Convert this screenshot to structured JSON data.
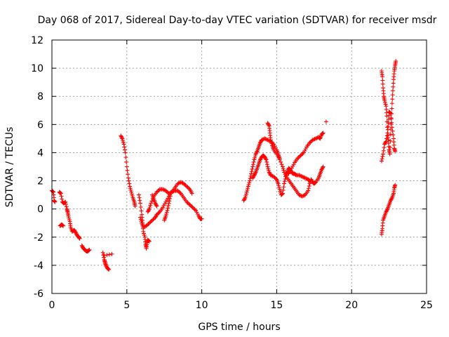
{
  "chart_data": {
    "type": "scatter",
    "title": "Day 068 of 2017, Sidereal Day-to-day VTEC variation (SDTVAR) for receiver msdr",
    "xlabel": "GPS time / hours",
    "ylabel": "SDTVAR / TECUs",
    "xlim": [
      0,
      25
    ],
    "ylim": [
      -6,
      12
    ],
    "xticks": [
      "0",
      "5",
      "10",
      "15",
      "20",
      "25"
    ],
    "yticks": [
      "-6",
      "-4",
      "-2",
      "0",
      "2",
      "4",
      "6",
      "8",
      "10",
      "12"
    ],
    "grid": true,
    "marker": "+",
    "color": "#ff0000",
    "series": [
      {
        "segments": [
          [
            [
              0.0,
              1.3
            ],
            [
              0.1,
              1.2
            ],
            [
              0.15,
              0.6
            ],
            [
              0.2,
              0.5
            ]
          ],
          [
            [
              0.5,
              1.2
            ],
            [
              0.6,
              1.1
            ],
            [
              0.7,
              0.5
            ],
            [
              0.8,
              0.4
            ],
            [
              0.9,
              0.5
            ],
            [
              1.0,
              0.0
            ],
            [
              1.05,
              -0.2
            ],
            [
              1.1,
              -0.5
            ],
            [
              1.2,
              -0.9
            ],
            [
              1.25,
              -1.3
            ],
            [
              1.35,
              -1.6
            ],
            [
              1.5,
              -1.5
            ],
            [
              1.6,
              -1.7
            ],
            [
              1.7,
              -1.9
            ],
            [
              1.8,
              -2.0
            ],
            [
              1.85,
              -2.1
            ]
          ],
          [
            [
              0.55,
              -1.2
            ],
            [
              0.65,
              -1.1
            ],
            [
              0.75,
              -1.2
            ]
          ],
          [
            [
              2.0,
              -2.6
            ],
            [
              2.1,
              -2.8
            ],
            [
              2.2,
              -2.9
            ],
            [
              2.3,
              -3.0
            ],
            [
              2.4,
              -3.0
            ],
            [
              2.5,
              -2.9
            ]
          ],
          [
            [
              3.4,
              -3.1
            ],
            [
              3.5,
              -3.6
            ],
            [
              3.55,
              -3.8
            ],
            [
              3.6,
              -4.0
            ],
            [
              3.7,
              -4.2
            ],
            [
              3.8,
              -4.3
            ]
          ],
          [
            [
              4.0,
              -3.2
            ],
            [
              3.5,
              -3.3
            ]
          ],
          [
            [
              4.6,
              5.2
            ],
            [
              4.7,
              5.0
            ],
            [
              4.8,
              4.6
            ],
            [
              4.9,
              4.0
            ],
            [
              5.0,
              3.0
            ],
            [
              5.1,
              2.2
            ],
            [
              5.2,
              1.6
            ],
            [
              5.3,
              1.2
            ],
            [
              5.4,
              0.8
            ],
            [
              5.5,
              0.5
            ],
            [
              5.55,
              0.2
            ]
          ],
          [
            [
              5.8,
              1.0
            ],
            [
              5.9,
              0.4
            ],
            [
              6.0,
              -0.4
            ],
            [
              6.05,
              -1.0
            ],
            [
              6.1,
              -1.6
            ],
            [
              6.2,
              -2.0
            ],
            [
              6.25,
              -2.5
            ],
            [
              6.3,
              -2.8
            ],
            [
              6.35,
              -2.4
            ],
            [
              6.4,
              -2.2
            ],
            [
              6.5,
              -2.3
            ]
          ],
          [
            [
              5.9,
              -0.6
            ],
            [
              6.0,
              -1.0
            ],
            [
              6.1,
              -1.3
            ],
            [
              6.3,
              -1.2
            ],
            [
              6.5,
              -1.0
            ],
            [
              6.7,
              -0.8
            ],
            [
              6.9,
              -0.6
            ],
            [
              7.0,
              -0.4
            ],
            [
              7.2,
              -0.2
            ],
            [
              7.4,
              0.1
            ],
            [
              7.6,
              0.5
            ],
            [
              7.8,
              0.9
            ],
            [
              8.0,
              1.2
            ],
            [
              8.2,
              1.3
            ],
            [
              8.4,
              1.3
            ],
            [
              8.6,
              1.1
            ],
            [
              8.8,
              0.8
            ],
            [
              9.0,
              0.5
            ],
            [
              9.2,
              0.3
            ],
            [
              9.4,
              0.1
            ],
            [
              9.6,
              -0.1
            ],
            [
              9.8,
              -0.5
            ],
            [
              9.9,
              -0.7
            ],
            [
              10.0,
              -0.7
            ]
          ],
          [
            [
              6.4,
              -0.2
            ],
            [
              6.5,
              0.0
            ],
            [
              6.6,
              0.4
            ],
            [
              6.8,
              0.9
            ],
            [
              7.0,
              1.2
            ],
            [
              7.2,
              1.4
            ],
            [
              7.4,
              1.4
            ],
            [
              7.6,
              1.3
            ],
            [
              7.8,
              1.1
            ],
            [
              8.0,
              1.2
            ],
            [
              8.2,
              1.5
            ],
            [
              8.4,
              1.8
            ],
            [
              8.6,
              1.9
            ],
            [
              8.8,
              1.8
            ],
            [
              9.0,
              1.6
            ],
            [
              9.2,
              1.4
            ],
            [
              9.35,
              1.1
            ]
          ],
          [
            [
              6.7,
              1.0
            ],
            [
              6.8,
              0.7
            ],
            [
              6.9,
              0.4
            ],
            [
              7.0,
              0.2
            ]
          ],
          [
            [
              7.5,
              -0.8
            ],
            [
              7.6,
              -0.5
            ],
            [
              7.7,
              -0.1
            ],
            [
              7.8,
              0.4
            ],
            [
              7.9,
              0.9
            ]
          ],
          [
            [
              12.8,
              0.6
            ],
            [
              12.9,
              0.8
            ],
            [
              13.0,
              1.2
            ],
            [
              13.1,
              1.6
            ],
            [
              13.2,
              2.0
            ],
            [
              13.3,
              2.5
            ],
            [
              13.4,
              3.0
            ],
            [
              13.5,
              3.5
            ],
            [
              13.6,
              3.9
            ],
            [
              13.7,
              4.1
            ],
            [
              13.8,
              4.4
            ],
            [
              13.9,
              4.7
            ],
            [
              14.0,
              4.9
            ],
            [
              14.2,
              5.0
            ],
            [
              14.4,
              4.9
            ],
            [
              14.6,
              4.8
            ],
            [
              14.8,
              4.6
            ],
            [
              15.0,
              4.2
            ],
            [
              15.1,
              3.9
            ],
            [
              15.2,
              3.6
            ]
          ],
          [
            [
              13.4,
              2.2
            ],
            [
              13.5,
              2.4
            ],
            [
              13.6,
              2.6
            ],
            [
              13.7,
              2.9
            ],
            [
              13.8,
              3.2
            ],
            [
              13.9,
              3.5
            ],
            [
              14.0,
              3.7
            ],
            [
              14.1,
              3.8
            ],
            [
              14.2,
              3.7
            ],
            [
              14.3,
              3.5
            ],
            [
              14.4,
              3.0
            ],
            [
              14.5,
              2.6
            ],
            [
              14.6,
              2.4
            ],
            [
              14.8,
              2.3
            ],
            [
              15.0,
              2.1
            ],
            [
              15.1,
              1.8
            ],
            [
              15.2,
              1.4
            ],
            [
              15.3,
              1.0
            ],
            [
              15.4,
              1.1
            ],
            [
              15.5,
              1.8
            ],
            [
              15.6,
              2.3
            ],
            [
              15.7,
              2.6
            ],
            [
              15.8,
              2.9
            ],
            [
              15.9,
              2.8
            ],
            [
              16.0,
              2.6
            ],
            [
              16.1,
              2.5
            ],
            [
              16.2,
              2.5
            ],
            [
              16.3,
              2.4
            ],
            [
              16.5,
              2.4
            ],
            [
              16.7,
              2.3
            ],
            [
              16.9,
              2.2
            ],
            [
              17.1,
              2.1
            ],
            [
              17.2,
              2.0
            ]
          ],
          [
            [
              14.4,
              6.1
            ],
            [
              14.5,
              5.9
            ],
            [
              14.55,
              5.4
            ],
            [
              14.6,
              4.9
            ],
            [
              14.7,
              4.5
            ],
            [
              14.8,
              4.2
            ],
            [
              15.0,
              3.9
            ],
            [
              15.2,
              3.5
            ],
            [
              15.4,
              3.0
            ],
            [
              15.5,
              2.6
            ],
            [
              15.7,
              2.2
            ],
            [
              15.9,
              1.9
            ],
            [
              16.1,
              1.6
            ],
            [
              16.3,
              1.3
            ],
            [
              16.5,
              1.0
            ],
            [
              16.7,
              0.9
            ],
            [
              16.9,
              1.0
            ],
            [
              17.1,
              1.3
            ],
            [
              17.2,
              1.8
            ],
            [
              17.3,
              2.1
            ],
            [
              17.4,
              1.9
            ],
            [
              17.5,
              1.8
            ],
            [
              17.6,
              1.9
            ],
            [
              17.8,
              2.2
            ],
            [
              17.9,
              2.5
            ],
            [
              18.0,
              2.8
            ],
            [
              18.1,
              3.0
            ]
          ],
          [
            [
              15.6,
              2.6
            ],
            [
              15.8,
              2.5
            ],
            [
              16.0,
              2.9
            ],
            [
              16.2,
              3.3
            ],
            [
              16.4,
              3.6
            ],
            [
              16.6,
              3.8
            ],
            [
              16.8,
              4.0
            ],
            [
              17.0,
              4.4
            ],
            [
              17.2,
              4.7
            ],
            [
              17.4,
              4.9
            ],
            [
              17.6,
              5.0
            ],
            [
              17.8,
              5.1
            ],
            [
              17.9,
              5.0
            ],
            [
              18.0,
              5.3
            ],
            [
              18.1,
              5.4
            ]
          ],
          [
            [
              18.3,
              6.2
            ]
          ],
          [
            [
              22.0,
              9.8
            ],
            [
              22.05,
              9.4
            ],
            [
              22.1,
              8.6
            ],
            [
              22.15,
              8.0
            ],
            [
              22.2,
              7.7
            ],
            [
              22.3,
              7.3
            ],
            [
              22.35,
              6.6
            ],
            [
              22.4,
              5.4
            ],
            [
              22.45,
              4.9
            ],
            [
              22.5,
              4.2
            ],
            [
              22.55,
              3.9
            ],
            [
              22.6,
              5.3
            ],
            [
              22.65,
              6.4
            ],
            [
              22.7,
              7.5
            ],
            [
              22.75,
              8.4
            ],
            [
              22.8,
              9.2
            ],
            [
              22.85,
              9.8
            ],
            [
              22.9,
              10.2
            ],
            [
              22.95,
              10.5
            ]
          ],
          [
            [
              22.0,
              3.4
            ],
            [
              22.1,
              3.9
            ],
            [
              22.2,
              4.6
            ],
            [
              22.3,
              4.8
            ],
            [
              22.4,
              5.4
            ],
            [
              22.45,
              6.1
            ],
            [
              22.5,
              6.9
            ],
            [
              22.6,
              6.8
            ],
            [
              22.7,
              5.8
            ],
            [
              22.8,
              5.0
            ],
            [
              22.85,
              4.3
            ],
            [
              22.9,
              4.1
            ]
          ],
          [
            [
              22.0,
              -1.8
            ],
            [
              22.05,
              -1.4
            ],
            [
              22.1,
              -0.8
            ],
            [
              22.2,
              -0.5
            ],
            [
              22.3,
              -0.2
            ],
            [
              22.4,
              0.0
            ],
            [
              22.5,
              0.3
            ],
            [
              22.6,
              0.6
            ],
            [
              22.7,
              0.8
            ],
            [
              22.8,
              1.1
            ],
            [
              22.85,
              1.5
            ],
            [
              22.9,
              1.7
            ]
          ]
        ]
      }
    ]
  }
}
